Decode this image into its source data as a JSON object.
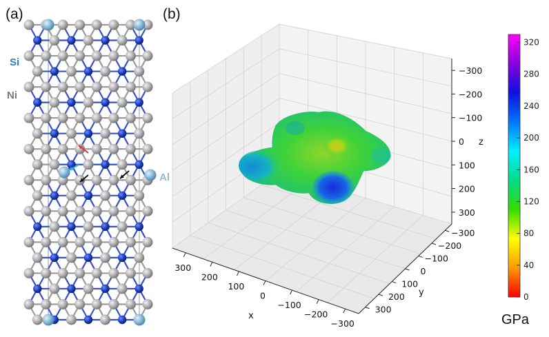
{
  "panel_a": {
    "label": "(a)",
    "element_labels": [
      {
        "text": "Si",
        "color": "#2a7fc9"
      },
      {
        "text": "Ni",
        "color": "#7a7a7a"
      },
      {
        "text": "Al",
        "color": "#8ebad8"
      }
    ],
    "atom_colors": {
      "Ni": "#a9a9a9",
      "Si": "#1f3fbf",
      "Al": "#7fb3d5"
    },
    "arrow_colors": [
      "#d93a2b",
      "#20b8c8",
      "#111111",
      "#111111"
    ]
  },
  "panel_b": {
    "label": "(b)",
    "axes": {
      "x": {
        "label": "x",
        "ticks": [
          "300",
          "200",
          "100",
          "0",
          "−100",
          "−200",
          "−300"
        ]
      },
      "y": {
        "label": "y",
        "ticks": [
          "−300",
          "−200",
          "−100",
          "0",
          "100",
          "200",
          "300"
        ]
      },
      "z": {
        "label": "z",
        "ticks": [
          "−300",
          "−200",
          "−100",
          "0",
          "100",
          "200",
          "300"
        ]
      }
    }
  },
  "colorbar": {
    "ticks": [
      "320",
      "280",
      "240",
      "200",
      "160",
      "120",
      "80",
      "40",
      "0"
    ],
    "min": 0,
    "max": 330,
    "unit": "GPa",
    "colors": [
      "#ff0000",
      "#ff9900",
      "#ffff00",
      "#33dd00",
      "#00dd88",
      "#00eeff",
      "#0077ff",
      "#1010e0",
      "#8800dd",
      "#ff00ff"
    ]
  }
}
